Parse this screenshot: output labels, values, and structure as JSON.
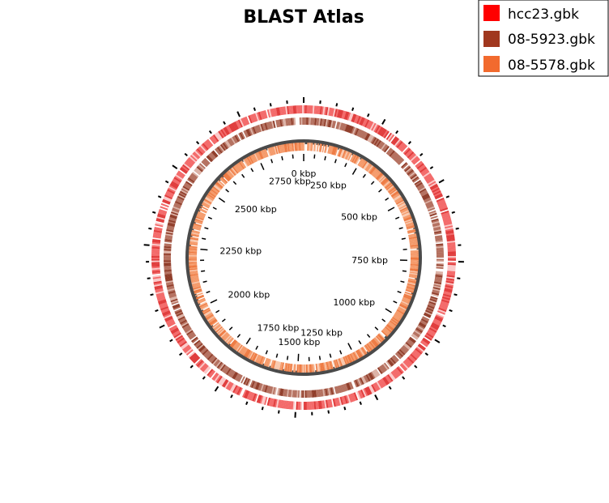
{
  "title": "BLAST Atlas",
  "legend": [
    {
      "label": "hcc23.gbk",
      "color": "#ff0000"
    },
    {
      "label": "08-5923.gbk",
      "color": "#a0371e"
    },
    {
      "label": "08-5578.gbk",
      "color": "#f26a2e"
    }
  ],
  "tracks": [
    {
      "name": "hcc23.gbk",
      "base_color": "#f36a6a",
      "light_color": "#fbc9c9",
      "dark_color": "#e03c3c"
    },
    {
      "name": "08-5923.gbk",
      "base_color": "#b4705f",
      "light_color": "#dcb2a6",
      "dark_color": "#8f3c29"
    },
    {
      "name": "08-5578.gbk",
      "base_color": "#f59a6a",
      "light_color": "#f9c8ad",
      "dark_color": "#ee7a42"
    }
  ],
  "backbone_color": "#4a4a4a",
  "genome_length_kbp": 2950,
  "kbp_labels": [
    {
      "kbp": 0,
      "text": "0 kbp"
    },
    {
      "kbp": 250,
      "text": "250 kbp"
    },
    {
      "kbp": 500,
      "text": "500 kbp"
    },
    {
      "kbp": 750,
      "text": "750 kbp"
    },
    {
      "kbp": 1000,
      "text": "1000 kbp"
    },
    {
      "kbp": 1250,
      "text": "1250 kbp"
    },
    {
      "kbp": 1500,
      "text": "1500 kbp"
    },
    {
      "kbp": 1750,
      "text": "1750 kbp"
    },
    {
      "kbp": 2000,
      "text": "2000 kbp"
    },
    {
      "kbp": 2250,
      "text": "2250 kbp"
    },
    {
      "kbp": 2500,
      "text": "2500 kbp"
    },
    {
      "kbp": 2750,
      "text": "2750 kbp"
    }
  ]
}
